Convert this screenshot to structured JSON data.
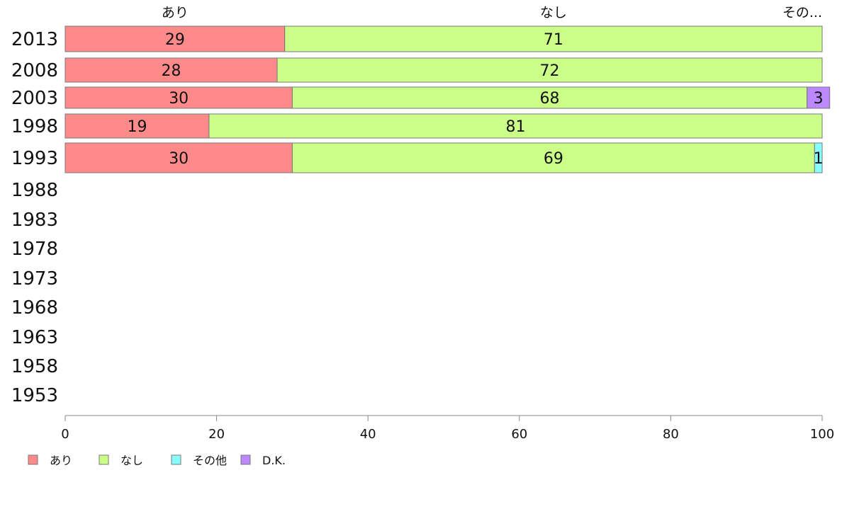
{
  "chart_data": {
    "type": "bar",
    "orientation": "horizontal",
    "stacked": true,
    "categories": [
      "2013",
      "2008",
      "2003",
      "1998",
      "1993",
      "1988",
      "1983",
      "1978",
      "1973",
      "1968",
      "1963",
      "1958",
      "1953"
    ],
    "series": [
      {
        "name": "あり",
        "color": "#ff8a8a",
        "values": [
          29,
          28,
          30,
          19,
          30,
          null,
          null,
          null,
          null,
          null,
          null,
          null,
          null
        ]
      },
      {
        "name": "なし",
        "color": "#ccff88",
        "values": [
          71,
          72,
          68,
          81,
          69,
          null,
          null,
          null,
          null,
          null,
          null,
          null,
          null
        ]
      },
      {
        "name": "その他",
        "color": "#88ffff",
        "values": [
          0,
          0,
          0,
          0,
          1,
          null,
          null,
          null,
          null,
          null,
          null,
          null,
          null
        ]
      },
      {
        "name": "D.K.",
        "color": "#bb88ff",
        "values": [
          0,
          0,
          3,
          0,
          0,
          null,
          null,
          null,
          null,
          null,
          null,
          null,
          null
        ]
      }
    ],
    "top_labels": [
      "あり",
      "なし",
      "その..."
    ],
    "xlim": [
      0,
      100
    ],
    "xticks": [
      "0",
      "20",
      "40",
      "60",
      "80",
      "100"
    ],
    "grid": false,
    "legend_position": "bottom-left",
    "title": "",
    "xlabel": "",
    "ylabel": ""
  }
}
